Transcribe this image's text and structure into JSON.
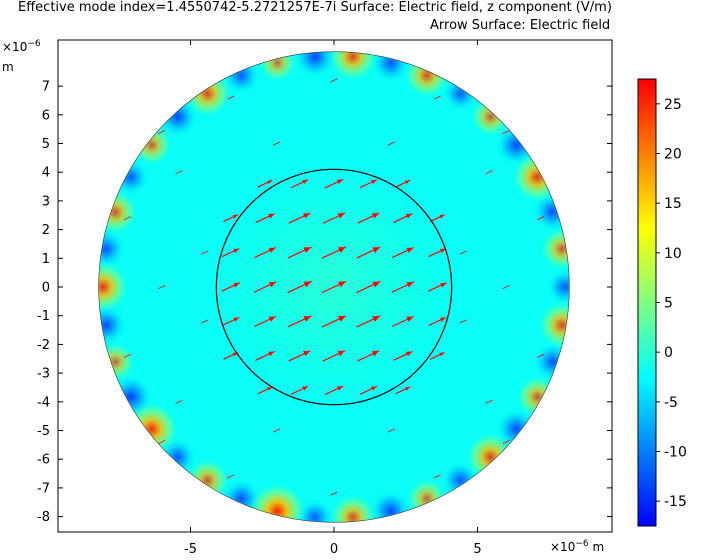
{
  "header": {
    "title_line1": "Effective mode index=1.4550742-5.2721257E-7i   Surface: Electric field, z component (V/m)",
    "title_line2": "Arrow Surface: Electric field"
  },
  "chart_data": {
    "type": "heatmap",
    "title": "Effective mode index=1.4550742-5.2721257E-7i   Surface: Electric field, z component (V/m)",
    "subtitle": "Arrow Surface: Electric field",
    "x_axis": {
      "unit_prefix": "×10",
      "unit_exp": "−6",
      "unit": "m",
      "range": [
        -9.5,
        9.5
      ],
      "ticks": [
        -5,
        0,
        5
      ],
      "tick_labels": [
        "-5",
        "0",
        "5"
      ]
    },
    "y_axis": {
      "unit_prefix": "×10",
      "unit_exp": "−6",
      "unit": "m",
      "range": [
        -8.3,
        8.0
      ],
      "ticks": [
        7,
        6,
        5,
        4,
        3,
        2,
        1,
        0,
        -1,
        -2,
        -3,
        -4,
        -5,
        -6,
        -7,
        -8
      ],
      "tick_labels": [
        "7",
        "6",
        "5",
        "4",
        "3",
        "2",
        "1",
        "0",
        "-1",
        "-2",
        "-3",
        "-4",
        "-5",
        "-6",
        "-7",
        "-8"
      ]
    },
    "geometry": {
      "outer_radius": 8.2,
      "core_radius": 4.1,
      "center": [
        0,
        0
      ]
    },
    "colorbar": {
      "range": [
        -17.5,
        27.5
      ],
      "ticks": [
        25,
        20,
        15,
        10,
        5,
        0,
        -5,
        -10,
        -15
      ],
      "tick_labels": [
        "25",
        "20",
        "15",
        "10",
        "5",
        "0",
        "-5",
        "-10",
        "-15"
      ],
      "colormap": [
        "#0000ff",
        "#0080ff",
        "#00ffff",
        "#80ff80",
        "#ffff00",
        "#ff8000",
        "#ff0000"
      ]
    },
    "background_value": -2,
    "hotspot_ring": {
      "radius": 8.05,
      "count": 38,
      "amplitude": 22,
      "angles_deg": [
        0,
        9.5,
        19,
        28.4,
        37.9,
        47.4,
        56.8,
        66.3,
        75.8,
        85.3,
        94.7,
        104.2,
        113.7,
        123.2,
        132.6,
        142.1,
        151.6,
        161.1,
        170.5,
        180,
        189.5,
        198.9,
        208.4,
        217.9,
        227.4,
        236.8,
        246.3,
        255.8,
        265.3,
        274.7,
        284.2,
        293.7,
        303.2,
        312.6,
        322.1,
        331.6,
        341.1,
        350.5
      ],
      "values": [
        -9,
        14,
        -12,
        21,
        -14,
        11,
        -8,
        16,
        -11,
        19,
        -15,
        9,
        -10,
        18,
        -13,
        12,
        -9,
        15,
        -11,
        22,
        -13,
        10,
        -16,
        24,
        -10,
        14,
        -12,
        27,
        -9,
        17,
        -14,
        11,
        -10,
        20,
        -13,
        13,
        -11,
        18
      ]
    },
    "arrow_field": {
      "color": "#ff0000",
      "direction_deg": 25,
      "core_arrows": [
        {
          "x": 0,
          "y": 0,
          "magnitude": 1.0
        },
        {
          "x": -1,
          "y": 0,
          "magnitude": 0.98
        },
        {
          "x": 1,
          "y": 0,
          "magnitude": 0.98
        },
        {
          "x": 0,
          "y": 1,
          "magnitude": 0.98
        },
        {
          "x": 0,
          "y": -1,
          "magnitude": 0.98
        },
        {
          "x": -1,
          "y": 1,
          "magnitude": 0.95
        },
        {
          "x": 1,
          "y": 1,
          "magnitude": 0.95
        },
        {
          "x": -1,
          "y": -1,
          "magnitude": 0.95
        },
        {
          "x": 1,
          "y": -1,
          "magnitude": 0.95
        },
        {
          "x": -2,
          "y": 0,
          "magnitude": 0.88
        },
        {
          "x": 2,
          "y": 0,
          "magnitude": 0.88
        },
        {
          "x": 0,
          "y": 2,
          "magnitude": 0.88
        },
        {
          "x": 0,
          "y": -2,
          "magnitude": 0.88
        },
        {
          "x": -2,
          "y": 1,
          "magnitude": 0.84
        },
        {
          "x": 2,
          "y": 1,
          "magnitude": 0.84
        },
        {
          "x": -2,
          "y": -1,
          "magnitude": 0.84
        },
        {
          "x": 2,
          "y": -1,
          "magnitude": 0.84
        },
        {
          "x": -1,
          "y": 2,
          "magnitude": 0.84
        },
        {
          "x": 1,
          "y": 2,
          "magnitude": 0.84
        },
        {
          "x": -1,
          "y": -2,
          "magnitude": 0.84
        },
        {
          "x": 1,
          "y": -2,
          "magnitude": 0.84
        },
        {
          "x": -2,
          "y": 2,
          "magnitude": 0.7
        },
        {
          "x": 2,
          "y": 2,
          "magnitude": 0.7
        },
        {
          "x": -2,
          "y": -2,
          "magnitude": 0.7
        },
        {
          "x": 2,
          "y": -2,
          "magnitude": 0.7
        },
        {
          "x": -3,
          "y": 0,
          "magnitude": 0.66
        },
        {
          "x": 3,
          "y": 0,
          "magnitude": 0.66
        },
        {
          "x": 0,
          "y": 3,
          "magnitude": 0.66
        },
        {
          "x": 0,
          "y": -3,
          "magnitude": 0.66
        },
        {
          "x": -3,
          "y": 1,
          "magnitude": 0.6
        },
        {
          "x": 3,
          "y": 1,
          "magnitude": 0.6
        },
        {
          "x": -3,
          "y": -1,
          "magnitude": 0.6
        },
        {
          "x": 3,
          "y": -1,
          "magnitude": 0.6
        },
        {
          "x": -1,
          "y": 3,
          "magnitude": 0.6
        },
        {
          "x": 1,
          "y": 3,
          "magnitude": 0.6
        },
        {
          "x": -1,
          "y": -3,
          "magnitude": 0.6
        },
        {
          "x": 1,
          "y": -3,
          "magnitude": 0.6
        },
        {
          "x": -3,
          "y": 2,
          "magnitude": 0.45
        },
        {
          "x": 3,
          "y": 2,
          "magnitude": 0.45
        },
        {
          "x": -3,
          "y": -2,
          "magnitude": 0.45
        },
        {
          "x": 3,
          "y": -2,
          "magnitude": 0.45
        },
        {
          "x": -2,
          "y": 3,
          "magnitude": 0.45
        },
        {
          "x": 2,
          "y": 3,
          "magnitude": 0.45
        },
        {
          "x": -2,
          "y": -3,
          "magnitude": 0.45
        },
        {
          "x": 2,
          "y": -3,
          "magnitude": 0.45
        }
      ],
      "cladding_arrows": [
        {
          "x": -3.6,
          "y": 6.6
        },
        {
          "x": 0.0,
          "y": 7.2
        },
        {
          "x": 3.6,
          "y": 6.6
        },
        {
          "x": -6.0,
          "y": 5.4
        },
        {
          "x": 6.0,
          "y": 5.4
        },
        {
          "x": -5.4,
          "y": 4.0
        },
        {
          "x": 5.4,
          "y": 4.0
        },
        {
          "x": -7.2,
          "y": 2.4
        },
        {
          "x": 7.2,
          "y": 2.4
        },
        {
          "x": -6.0,
          "y": 0.0
        },
        {
          "x": 6.0,
          "y": 0.0
        },
        {
          "x": -7.2,
          "y": -2.4
        },
        {
          "x": 7.2,
          "y": -2.4
        },
        {
          "x": -5.4,
          "y": -4.0
        },
        {
          "x": 5.4,
          "y": -4.0
        },
        {
          "x": -6.0,
          "y": -5.4
        },
        {
          "x": 6.0,
          "y": -5.4
        },
        {
          "x": -3.6,
          "y": -6.6
        },
        {
          "x": 0.0,
          "y": -7.2
        },
        {
          "x": 3.6,
          "y": -6.6
        },
        {
          "x": -4.5,
          "y": 1.2
        },
        {
          "x": 4.5,
          "y": 1.2
        },
        {
          "x": -4.5,
          "y": -1.2
        },
        {
          "x": 4.5,
          "y": -1.2
        },
        {
          "x": -2.0,
          "y": 5.0
        },
        {
          "x": 2.0,
          "y": 5.0
        },
        {
          "x": -2.0,
          "y": -5.0
        },
        {
          "x": 2.0,
          "y": -5.0
        }
      ]
    }
  }
}
